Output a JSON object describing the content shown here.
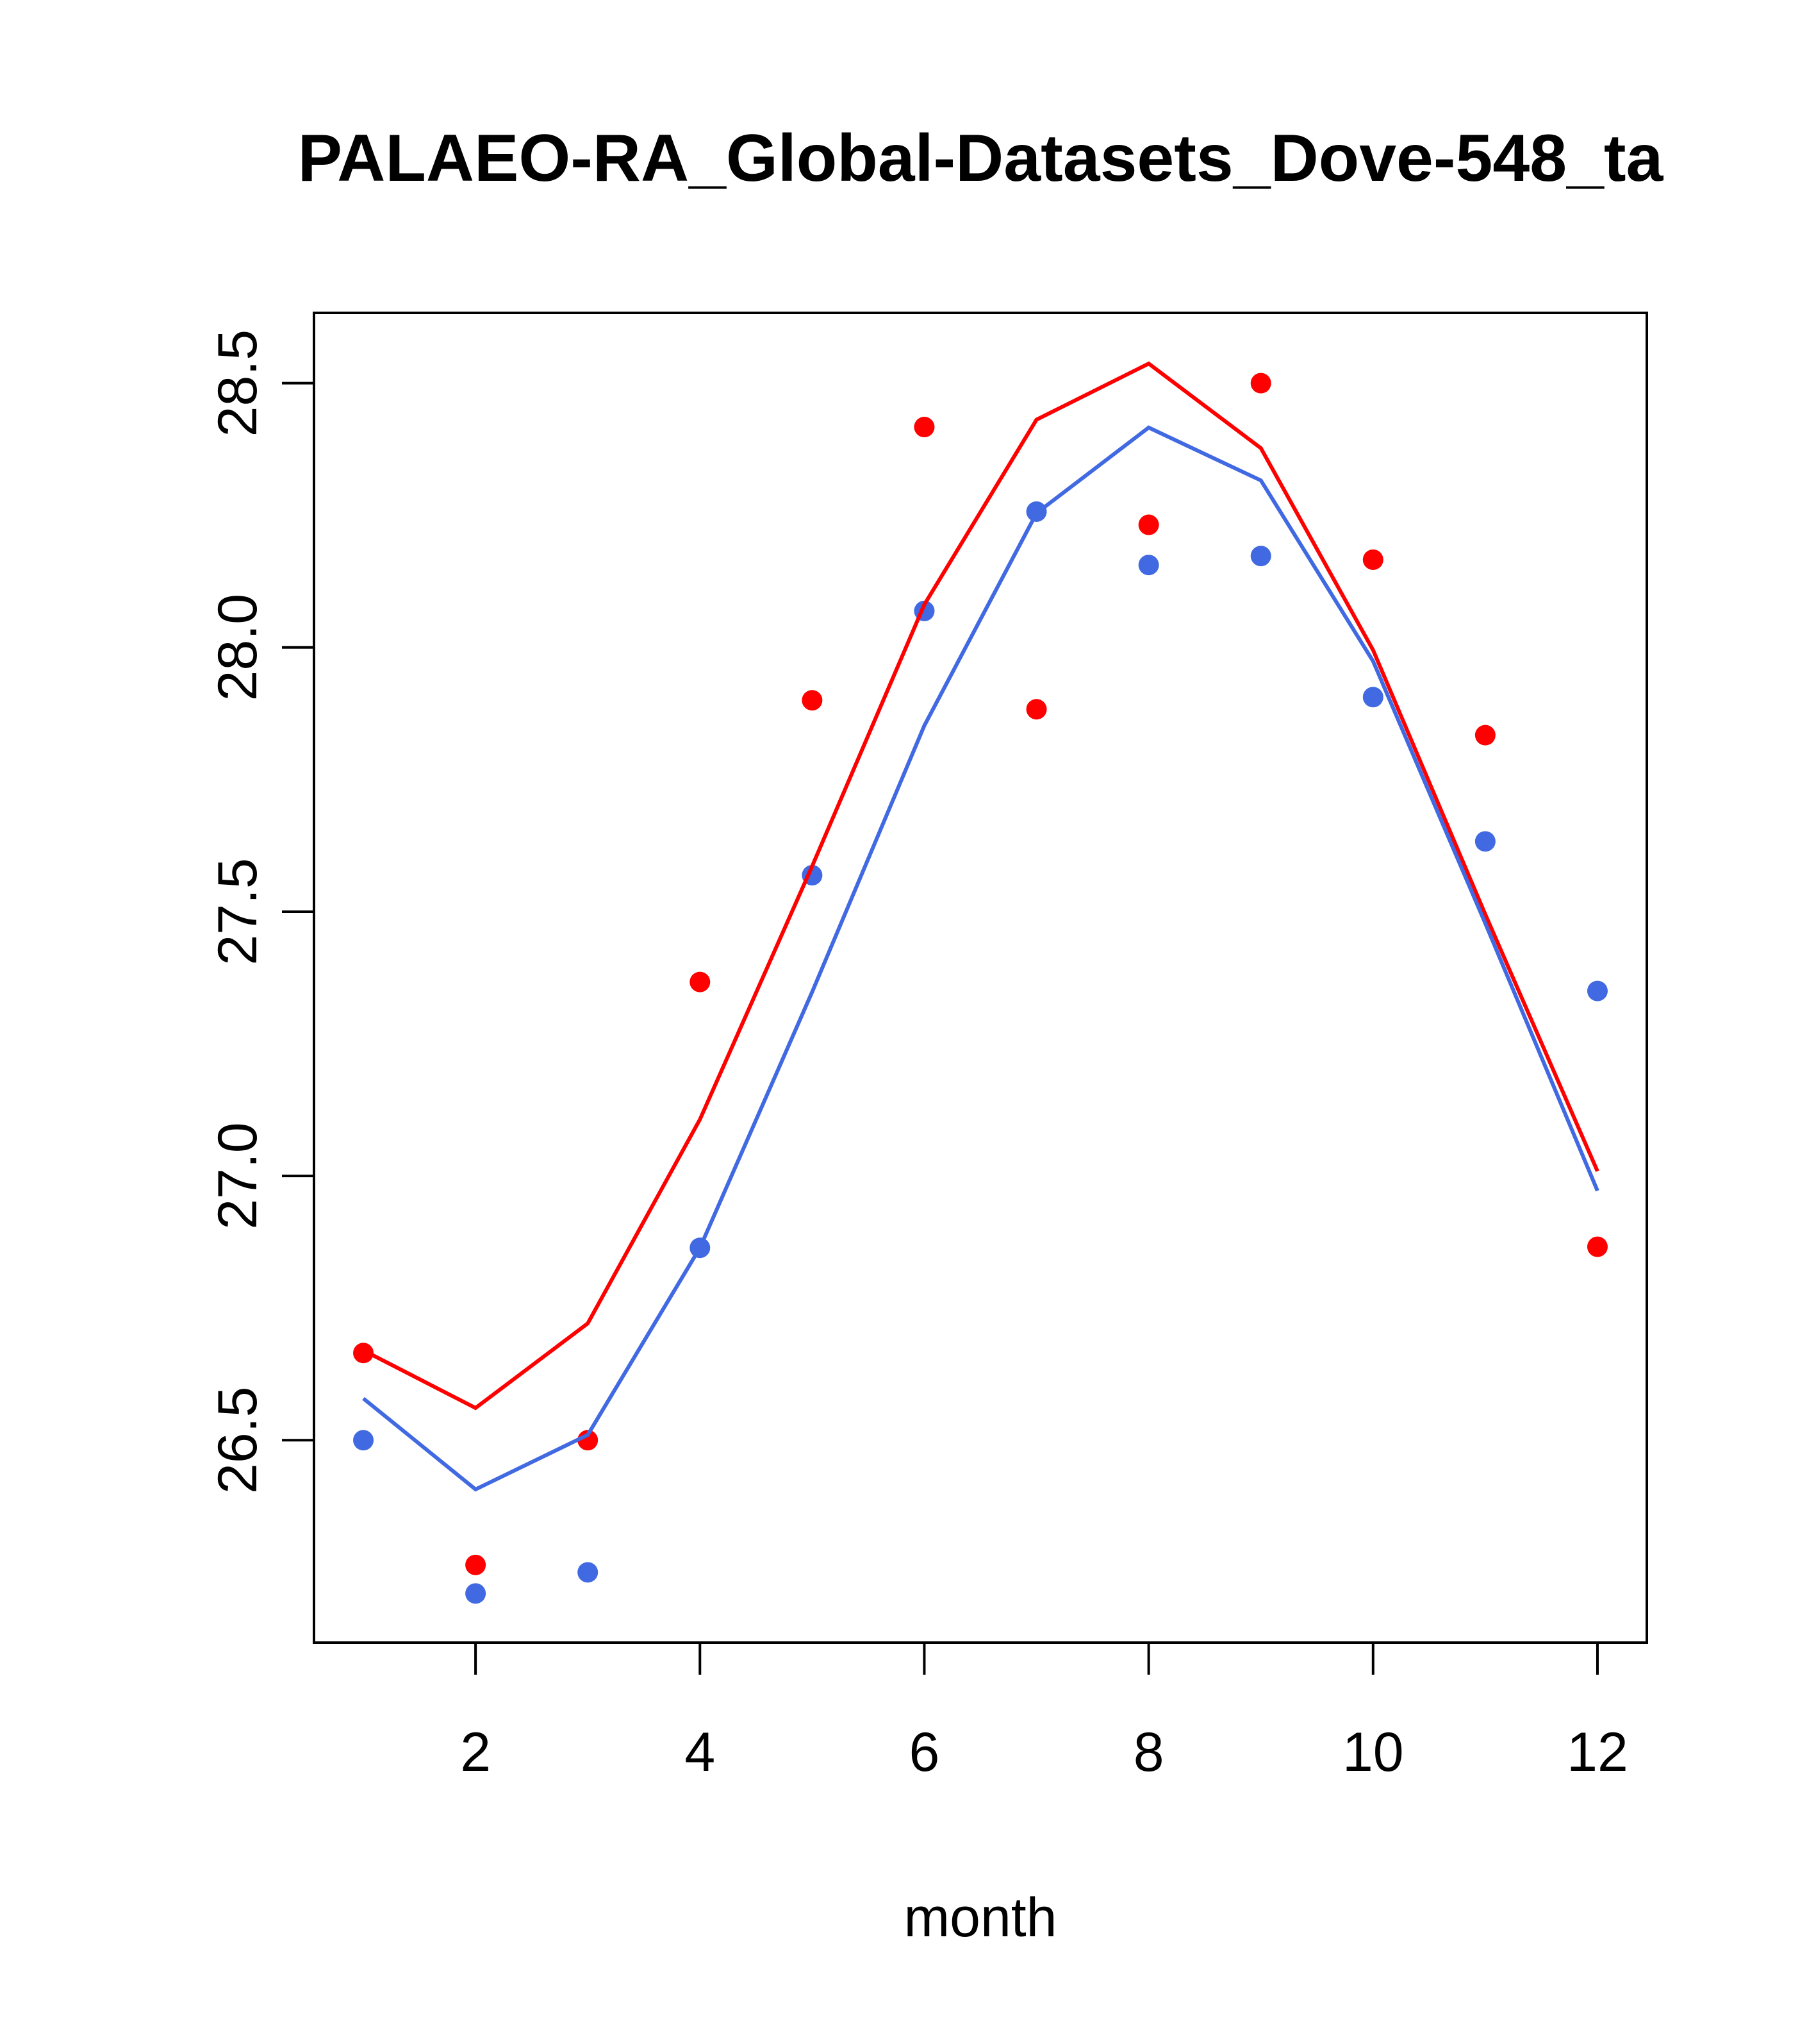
{
  "chart_data": {
    "type": "line",
    "title": "PALAEO-RA_Global-Datasets_Dove-548_ta",
    "xlabel": "month",
    "ylabel": "",
    "xlim": [
      0.56,
      12.44
    ],
    "ylim": [
      26.117,
      28.633
    ],
    "xticks": [
      2,
      4,
      6,
      8,
      10,
      12
    ],
    "xtick_labels": [
      "2",
      "4",
      "6",
      "8",
      "10",
      "12"
    ],
    "yticks": [
      26.5,
      27.0,
      27.5,
      28.0,
      28.5
    ],
    "ytick_labels": [
      "26.5",
      "27.0",
      "27.5",
      "28.0",
      "28.5"
    ],
    "grid": false,
    "x": [
      1,
      2,
      3,
      4,
      5,
      6,
      7,
      8,
      9,
      10,
      11,
      12
    ],
    "series": [
      {
        "name": "red points",
        "kind": "points",
        "color": "#ff0000",
        "values": [
          26.665,
          26.264,
          26.5,
          27.367,
          27.9,
          28.417,
          27.883,
          28.232,
          28.5,
          28.166,
          27.834,
          26.866
        ]
      },
      {
        "name": "blue points",
        "kind": "points",
        "color": "#4169e1",
        "values": [
          26.5,
          26.21,
          26.25,
          26.864,
          27.569,
          28.069,
          28.257,
          28.156,
          28.173,
          27.906,
          27.633,
          27.35
        ]
      },
      {
        "name": "red line",
        "kind": "line",
        "color": "#ff0000",
        "values": [
          26.67,
          26.561,
          26.721,
          27.107,
          27.586,
          28.081,
          28.431,
          28.537,
          28.377,
          27.995,
          27.495,
          27.009
        ]
      },
      {
        "name": "blue line",
        "kind": "line",
        "color": "#4169e1",
        "values": [
          26.579,
          26.407,
          26.51,
          26.864,
          27.348,
          27.852,
          28.254,
          28.416,
          28.316,
          27.974,
          27.478,
          26.972
        ]
      }
    ]
  }
}
